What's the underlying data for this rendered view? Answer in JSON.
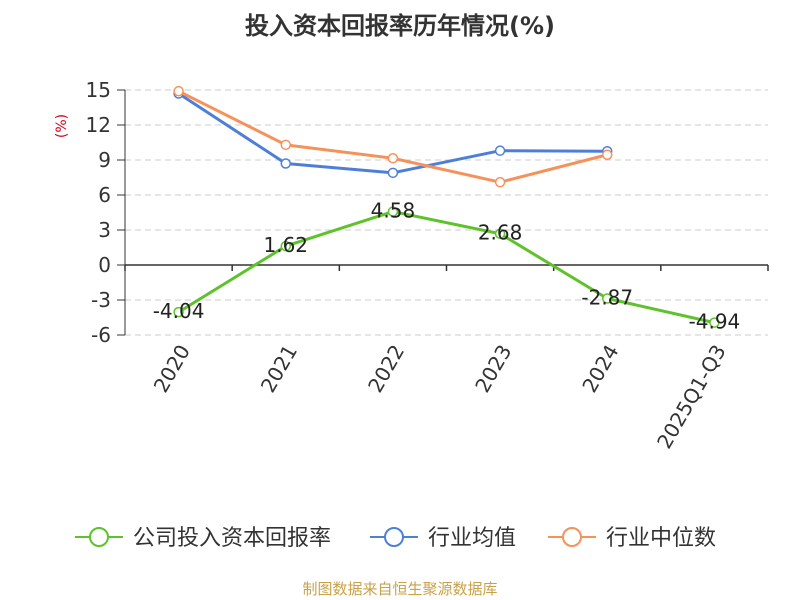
{
  "chart_data": {
    "type": "line",
    "title": "投入资本回报率历年情况(%)",
    "ylabel": "(%)",
    "categories": [
      "2020",
      "2021",
      "2022",
      "2023",
      "2024",
      "2025Q1-Q3"
    ],
    "ylim": [
      -6,
      15
    ],
    "yticks": [
      "15",
      "12",
      "9",
      "6",
      "3",
      "0",
      "-3",
      "-6"
    ],
    "grid": true,
    "legend_position": "bottom",
    "series": [
      {
        "name": "公司投入资本回报率",
        "color": "#5ec22a",
        "values": [
          -4.04,
          1.62,
          4.58,
          2.68,
          -2.87,
          -4.94
        ],
        "labels": [
          "-4.04",
          "1.62",
          "4.58",
          "2.68",
          "-2.87",
          "-4.94"
        ]
      },
      {
        "name": "行业均值",
        "color": "#4e7fd8",
        "values": [
          14.7,
          8.7,
          7.9,
          9.8,
          9.75,
          null
        ]
      },
      {
        "name": "行业中位数",
        "color": "#f5925b",
        "values": [
          14.9,
          10.3,
          9.15,
          7.1,
          9.45,
          null
        ]
      }
    ]
  },
  "footer": "制图数据来自恒生聚源数据库"
}
